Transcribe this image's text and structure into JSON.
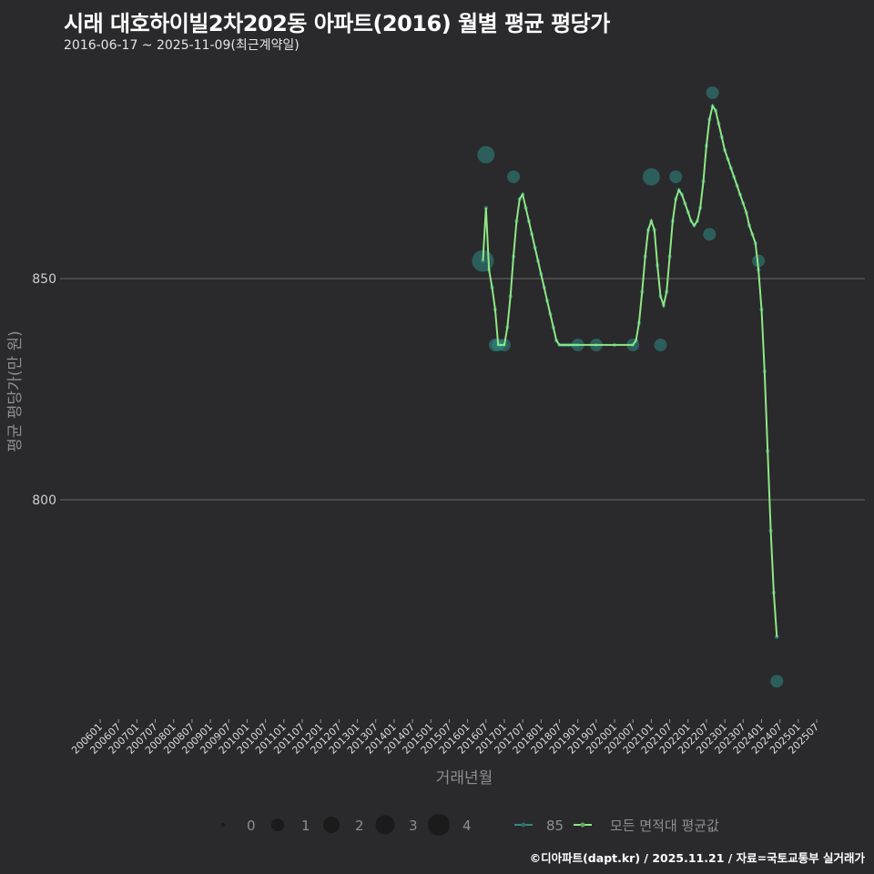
{
  "header": {
    "title": "시래 대호하이빌2차202동 아파트(2016) 월별 평균 평당가",
    "subtitle": "2016-06-17 ~ 2025-11-09(최근계약일)"
  },
  "footer": {
    "credit": "©디아파트(dapt.kr) / 2025.11.21 / 자료=국토교통부 실거래가"
  },
  "colors": {
    "background": "#2a292b",
    "gridline": "#6b6b6b",
    "series_85": "#2e8b84",
    "series_avg": "#8ee884",
    "text": "#cccccc"
  },
  "chart_data": {
    "type": "line",
    "title": "시래 대호하이빌2차202동 아파트(2016) 월별 평균 평당가",
    "subtitle": "2016-06-17 ~ 2025-11-09(최근계약일)",
    "xlabel": "거래년월",
    "ylabel": "평균 평당가(만 원)",
    "x_ticks": [
      "200601",
      "200607",
      "200701",
      "200707",
      "200801",
      "200807",
      "200901",
      "200907",
      "201001",
      "201007",
      "201101",
      "201107",
      "201201",
      "201207",
      "201301",
      "201307",
      "201401",
      "201407",
      "201501",
      "201507",
      "201601",
      "201607",
      "201701",
      "201707",
      "201801",
      "201807",
      "201901",
      "201907",
      "202001",
      "202007",
      "202101",
      "202107",
      "202201",
      "202207",
      "202301",
      "202307",
      "202401",
      "202407",
      "202501",
      "202507"
    ],
    "y_ticks": [
      800,
      850
    ],
    "ylim": [
      757,
      897
    ],
    "grid": true,
    "legend": {
      "position": "bottom",
      "size_title": "",
      "size_entries": [
        "0",
        "1",
        "2",
        "3",
        "4"
      ],
      "series_entries": [
        "85",
        "모든 면적대 평균값"
      ]
    },
    "series": [
      {
        "name": "모든 면적대 평균값",
        "points": [
          [
            "201606",
            854
          ],
          [
            "201607",
            866
          ],
          [
            "201608",
            852
          ],
          [
            "201609",
            848
          ],
          [
            "201610",
            843
          ],
          [
            "201611",
            835
          ],
          [
            "201612",
            835
          ],
          [
            "201701",
            835
          ],
          [
            "201702",
            839
          ],
          [
            "201703",
            846
          ],
          [
            "201704",
            855
          ],
          [
            "201705",
            863
          ],
          [
            "201706",
            868
          ],
          [
            "201707",
            869
          ],
          [
            "201708",
            866
          ],
          [
            "201709",
            863
          ],
          [
            "201710",
            860
          ],
          [
            "201711",
            857
          ],
          [
            "201712",
            854
          ],
          [
            "201801",
            851
          ],
          [
            "201802",
            848
          ],
          [
            "201803",
            845
          ],
          [
            "201804",
            842
          ],
          [
            "201805",
            839
          ],
          [
            "201806",
            836
          ],
          [
            "201807",
            835
          ],
          [
            "201808",
            835
          ],
          [
            "201809",
            835
          ],
          [
            "201810",
            835
          ],
          [
            "201811",
            835
          ],
          [
            "201812",
            835
          ],
          [
            "201901",
            835
          ],
          [
            "201907",
            835
          ],
          [
            "202001",
            835
          ],
          [
            "202007",
            835
          ],
          [
            "202008",
            836
          ],
          [
            "202009",
            840
          ],
          [
            "202010",
            847
          ],
          [
            "202011",
            855
          ],
          [
            "202012",
            861
          ],
          [
            "202101",
            863
          ],
          [
            "202102",
            861
          ],
          [
            "202103",
            853
          ],
          [
            "202104",
            846
          ],
          [
            "202105",
            844
          ],
          [
            "202106",
            847
          ],
          [
            "202107",
            855
          ],
          [
            "202108",
            863
          ],
          [
            "202109",
            868
          ],
          [
            "202110",
            870
          ],
          [
            "202111",
            869
          ],
          [
            "202112",
            867
          ],
          [
            "202201",
            865
          ],
          [
            "202202",
            863
          ],
          [
            "202203",
            862
          ],
          [
            "202204",
            863
          ],
          [
            "202205",
            866
          ],
          [
            "202206",
            872
          ],
          [
            "202207",
            880
          ],
          [
            "202208",
            886
          ],
          [
            "202209",
            889
          ],
          [
            "202210",
            888
          ],
          [
            "202211",
            885
          ],
          [
            "202212",
            882
          ],
          [
            "202301",
            879
          ],
          [
            "202302",
            877
          ],
          [
            "202303",
            875
          ],
          [
            "202304",
            873
          ],
          [
            "202305",
            871
          ],
          [
            "202306",
            869
          ],
          [
            "202307",
            867
          ],
          [
            "202308",
            865
          ],
          [
            "202309",
            862
          ],
          [
            "202310",
            860
          ],
          [
            "202311",
            858
          ],
          [
            "202312",
            852
          ],
          [
            "202401",
            843
          ],
          [
            "202402",
            829
          ],
          [
            "202403",
            811
          ],
          [
            "202404",
            793
          ],
          [
            "202405",
            779
          ],
          [
            "202406",
            769
          ]
        ]
      },
      {
        "name": "85",
        "note": "trade bubbles (size = number of trades)",
        "bubbles": [
          {
            "x": "201606",
            "y": 854,
            "size": 4
          },
          {
            "x": "201607",
            "y": 878,
            "size": 3
          },
          {
            "x": "201610",
            "y": 835,
            "size": 2
          },
          {
            "x": "201611",
            "y": 835,
            "size": 2
          },
          {
            "x": "201701",
            "y": 835,
            "size": 2
          },
          {
            "x": "201704",
            "y": 873,
            "size": 2
          },
          {
            "x": "201901",
            "y": 835,
            "size": 2
          },
          {
            "x": "201907",
            "y": 835,
            "size": 2
          },
          {
            "x": "202007",
            "y": 835,
            "size": 2
          },
          {
            "x": "202101",
            "y": 873,
            "size": 3
          },
          {
            "x": "202104",
            "y": 835,
            "size": 2
          },
          {
            "x": "202109",
            "y": 873,
            "size": 2
          },
          {
            "x": "202208",
            "y": 860,
            "size": 2
          },
          {
            "x": "202209",
            "y": 892,
            "size": 2
          },
          {
            "x": "202312",
            "y": 854,
            "size": 2
          },
          {
            "x": "202406",
            "y": 759,
            "size": 2
          }
        ]
      }
    ]
  },
  "axis": {
    "y_label": "평균 평당가(만 원)",
    "x_label": "거래년월",
    "y_tick_850": "850",
    "y_tick_800": "800"
  },
  "legend": {
    "size_labels": [
      "0",
      "1",
      "2",
      "3",
      "4"
    ],
    "series_85": "85",
    "series_avg": "모든 면적대 평균값"
  }
}
